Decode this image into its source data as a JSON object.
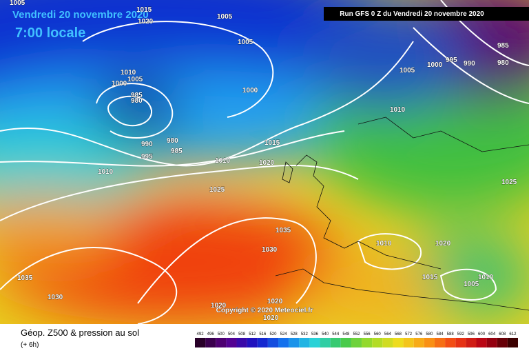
{
  "header": {
    "date": "Vendredi 20 novembre 2020",
    "time": "7:00 locale",
    "run": "Run GFS 0 Z du Vendredi 20 novembre 2020"
  },
  "isobars": [
    1005,
    1015,
    1020,
    1005,
    1005,
    1010,
    1005,
    1000,
    985,
    980,
    990,
    995,
    980,
    985,
    1000,
    1005,
    1000,
    995,
    990,
    985,
    980,
    1010,
    1015,
    1020,
    1010,
    1010,
    1025,
    1035,
    1030,
    1020,
    1020,
    1010,
    1020,
    1015,
    1005,
    1010,
    1025,
    1035,
    1030,
    1020
  ],
  "copyright": "Copyright © 2020 Meteociel.fr",
  "legend": {
    "title": "Géop. Z500 & pression au sol",
    "step": "(+ 6h)",
    "scale": [
      492,
      496,
      500,
      504,
      508,
      512,
      516,
      520,
      524,
      528,
      532,
      536,
      540,
      544,
      548,
      552,
      556,
      560,
      564,
      568,
      572,
      576,
      580,
      584,
      588,
      592,
      596,
      600,
      604,
      608,
      612
    ]
  }
}
